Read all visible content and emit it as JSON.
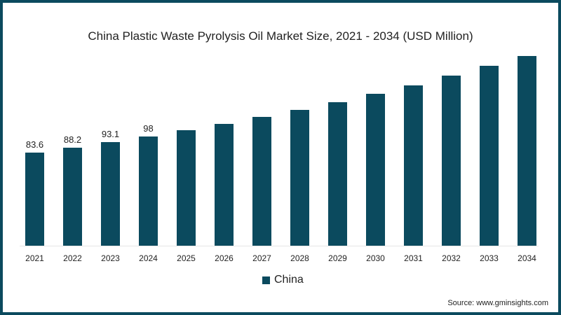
{
  "chart_data": {
    "type": "bar",
    "title": "China Plastic Waste Pyrolysis Oil Market Size, 2021 - 2034 (USD Million)",
    "xlabel": "",
    "ylabel": "",
    "categories": [
      "2021",
      "2022",
      "2023",
      "2024",
      "2025",
      "2026",
      "2027",
      "2028",
      "2029",
      "2030",
      "2031",
      "2032",
      "2033",
      "2034"
    ],
    "series": [
      {
        "name": "China",
        "color": "#0b4a5e",
        "values": [
          83.6,
          88.2,
          93.1,
          98,
          103.7,
          109.3,
          115.6,
          121.9,
          128.8,
          136.4,
          143.9,
          152.7,
          161.5,
          170.3
        ]
      }
    ],
    "data_labels": [
      "83.6",
      "88.2",
      "93.1",
      "98",
      "",
      "",
      "",
      "",
      "",
      "",
      "",
      "",
      "",
      ""
    ],
    "ylim": [
      0,
      180
    ],
    "grid": false,
    "legend_position": "bottom",
    "source": "Source: www.gminsights.com"
  },
  "title": "China Plastic Waste Pyrolysis Oil Market Size, 2021 - 2034 (USD Million)",
  "legend": {
    "label": "China"
  },
  "source": "Source: www.gminsights.com"
}
